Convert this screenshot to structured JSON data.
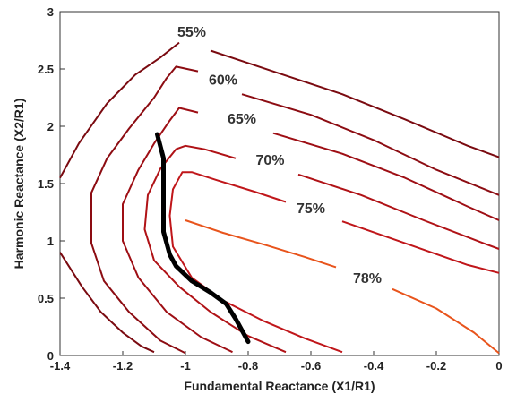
{
  "chart_data": {
    "type": "line",
    "title": "",
    "xlabel": "Fundamental Reactance (X1/R1)",
    "ylabel": "Harmonic Reactance (X2/R1)",
    "xlim": [
      -1.4,
      0
    ],
    "ylim": [
      0,
      3
    ],
    "xticks": [
      "-1.4",
      "-1.2",
      "-1",
      "-0.8",
      "-0.6",
      "-0.4",
      "-0.2",
      "0"
    ],
    "yticks": [
      "0",
      "0.5",
      "1",
      "1.5",
      "2",
      "2.5",
      "3"
    ],
    "grid": false,
    "series": [
      {
        "name": "55%",
        "color": "#7a0a10",
        "label_at": [
          -0.98,
          2.83
        ],
        "points": [
          [
            -1.4,
            0.9
          ],
          [
            -1.33,
            0.6
          ],
          [
            -1.27,
            0.38
          ],
          [
            -1.2,
            0.2
          ],
          [
            -1.14,
            0.08
          ],
          [
            -1.1,
            0.03
          ],
          [
            null,
            null
          ],
          [
            -1.4,
            1.55
          ],
          [
            -1.34,
            1.85
          ],
          [
            -1.25,
            2.2
          ],
          [
            -1.16,
            2.45
          ],
          [
            -1.08,
            2.6
          ],
          [
            -1.02,
            2.73
          ],
          [
            null,
            null
          ],
          [
            -0.92,
            2.66
          ],
          [
            -0.7,
            2.46
          ],
          [
            -0.5,
            2.28
          ],
          [
            -0.3,
            2.06
          ],
          [
            -0.1,
            1.83
          ],
          [
            0,
            1.73
          ]
        ]
      },
      {
        "name": "60%",
        "color": "#8c0c12",
        "label_at": [
          -0.88,
          2.41
        ],
        "points": [
          [
            -1.0,
            0.02
          ],
          [
            -1.08,
            0.13
          ],
          [
            -1.18,
            0.38
          ],
          [
            -1.26,
            0.65
          ],
          [
            -1.3,
            0.98
          ],
          [
            -1.3,
            1.42
          ],
          [
            -1.25,
            1.72
          ],
          [
            -1.18,
            1.98
          ],
          [
            -1.1,
            2.25
          ],
          [
            -1.06,
            2.42
          ],
          [
            -1.03,
            2.52
          ],
          [
            -0.96,
            2.48
          ],
          [
            null,
            null
          ],
          [
            -0.82,
            2.28
          ],
          [
            -0.6,
            2.1
          ],
          [
            -0.4,
            1.88
          ],
          [
            -0.2,
            1.62
          ],
          [
            0,
            1.4
          ]
        ]
      },
      {
        "name": "65%",
        "color": "#9e0e14",
        "label_at": [
          -0.82,
          2.07
        ],
        "points": [
          [
            -0.85,
            0.03
          ],
          [
            -0.95,
            0.16
          ],
          [
            -1.06,
            0.38
          ],
          [
            -1.15,
            0.68
          ],
          [
            -1.2,
            1.0
          ],
          [
            -1.2,
            1.32
          ],
          [
            -1.15,
            1.62
          ],
          [
            -1.1,
            1.85
          ],
          [
            -1.05,
            2.05
          ],
          [
            -1.02,
            2.16
          ],
          [
            -0.96,
            2.12
          ],
          [
            null,
            null
          ],
          [
            -0.72,
            1.94
          ],
          [
            -0.5,
            1.76
          ],
          [
            -0.3,
            1.55
          ],
          [
            -0.1,
            1.3
          ],
          [
            0,
            1.18
          ]
        ]
      },
      {
        "name": "70%",
        "color": "#b01216",
        "label_at": [
          -0.73,
          1.71
        ],
        "points": [
          [
            -0.68,
            0.03
          ],
          [
            -0.8,
            0.17
          ],
          [
            -0.92,
            0.38
          ],
          [
            -1.02,
            0.6
          ],
          [
            -1.1,
            0.83
          ],
          [
            -1.13,
            1.1
          ],
          [
            -1.12,
            1.4
          ],
          [
            -1.08,
            1.63
          ],
          [
            -1.03,
            1.8
          ],
          [
            -1.0,
            1.83
          ],
          [
            -0.94,
            1.8
          ],
          [
            -0.84,
            1.72
          ],
          [
            null,
            null
          ],
          [
            -0.64,
            1.58
          ],
          [
            -0.44,
            1.4
          ],
          [
            -0.24,
            1.18
          ],
          [
            -0.05,
            0.98
          ],
          [
            0,
            0.93
          ]
        ]
      },
      {
        "name": "75%",
        "color": "#c0161a",
        "label_at": [
          -0.6,
          1.29
        ],
        "points": [
          [
            -0.5,
            0.03
          ],
          [
            -0.62,
            0.15
          ],
          [
            -0.75,
            0.3
          ],
          [
            -0.88,
            0.48
          ],
          [
            -0.98,
            0.68
          ],
          [
            -1.04,
            0.95
          ],
          [
            -1.05,
            1.22
          ],
          [
            -1.04,
            1.45
          ],
          [
            -1.01,
            1.6
          ],
          [
            -0.98,
            1.6
          ],
          [
            -0.9,
            1.53
          ],
          [
            -0.78,
            1.43
          ],
          [
            -0.68,
            1.34
          ],
          [
            null,
            null
          ],
          [
            -0.5,
            1.17
          ],
          [
            -0.3,
            0.98
          ],
          [
            -0.1,
            0.79
          ],
          [
            0,
            0.72
          ]
        ]
      },
      {
        "name": "78%",
        "color": "#e8541c",
        "label_at": [
          -0.42,
          0.68
        ],
        "points": [
          [
            -1.0,
            1.18
          ],
          [
            -0.88,
            1.07
          ],
          [
            -0.74,
            0.96
          ],
          [
            -0.62,
            0.86
          ],
          [
            -0.52,
            0.77
          ],
          [
            null,
            null
          ],
          [
            -0.34,
            0.58
          ],
          [
            -0.2,
            0.41
          ],
          [
            -0.08,
            0.2
          ],
          [
            0,
            0.02
          ]
        ]
      }
    ],
    "trajectory": {
      "color": "#000000",
      "points": [
        [
          -1.09,
          1.93
        ],
        [
          -1.07,
          1.72
        ],
        [
          -1.07,
          1.5
        ],
        [
          -1.07,
          1.3
        ],
        [
          -1.07,
          1.08
        ],
        [
          -1.05,
          0.88
        ],
        [
          -1.03,
          0.78
        ],
        [
          -0.98,
          0.65
        ],
        [
          -0.92,
          0.55
        ],
        [
          -0.87,
          0.45
        ],
        [
          -0.84,
          0.32
        ],
        [
          -0.82,
          0.22
        ],
        [
          -0.8,
          0.12
        ]
      ]
    }
  }
}
